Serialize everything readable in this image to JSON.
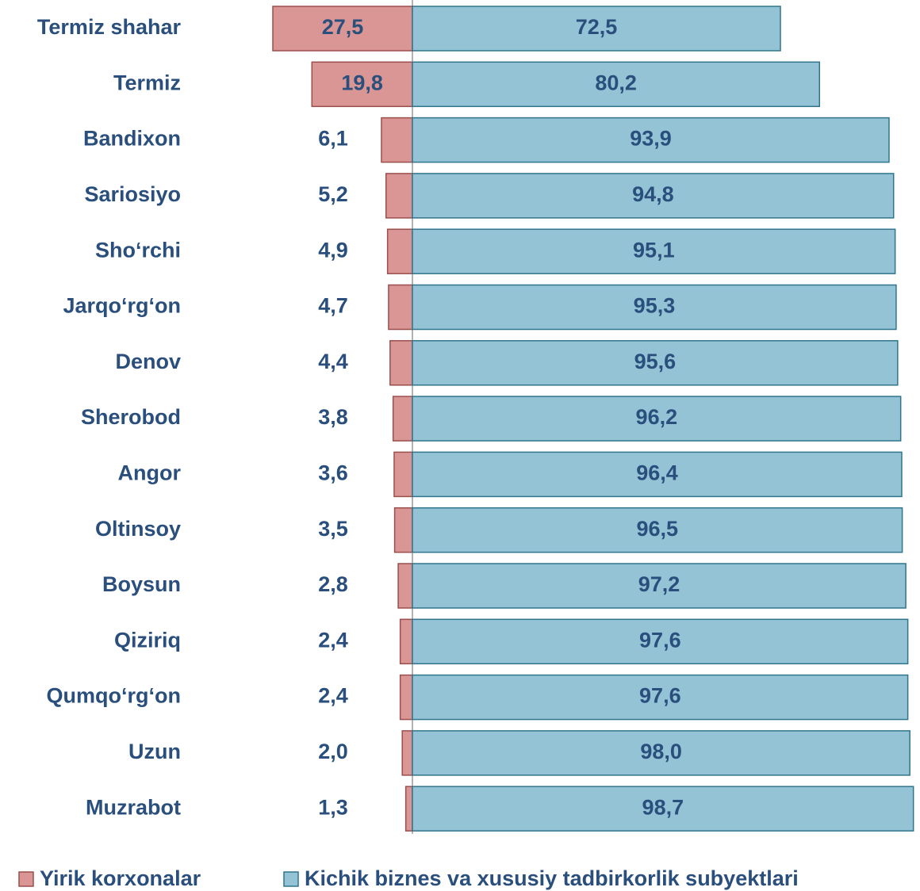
{
  "chart_data": {
    "type": "diverging_bar",
    "categories": [
      "Termiz shahar",
      "Termiz",
      "Bandixon",
      "Sariosiyo",
      "Sho‘rchi",
      "Jarqo‘rg‘on",
      "Denov",
      "Sherobod",
      "Angor",
      "Oltinsoy",
      "Boysun",
      "Qiziriq",
      "Qumqo‘rg‘on",
      "Uzun",
      "Muzrabot"
    ],
    "series": [
      {
        "name": "Yirik korxonalar",
        "color": "#d99694",
        "border": "#9b4f4d",
        "values": [
          27.5,
          19.8,
          6.1,
          5.2,
          4.9,
          4.7,
          4.4,
          3.8,
          3.6,
          3.5,
          2.8,
          2.4,
          2.4,
          2.0,
          1.3
        ],
        "value_labels": [
          "27,5",
          "19,8",
          "6,1",
          "5,2",
          "4,9",
          "4,7",
          "4,4",
          "3,8",
          "3,6",
          "3,5",
          "2,8",
          "2,4",
          "2,4",
          "2,0",
          "1,3"
        ]
      },
      {
        "name": "Kichik biznes va xususiy tadbirkorlik subyektlari",
        "color": "#93c3d5",
        "border": "#31758c",
        "values": [
          72.5,
          80.2,
          93.9,
          94.8,
          95.1,
          95.3,
          95.6,
          96.2,
          96.4,
          96.5,
          97.2,
          97.6,
          97.6,
          98.0,
          98.7
        ],
        "value_labels": [
          "72,5",
          "80,2",
          "93,9",
          "94,8",
          "95,1",
          "95,3",
          "95,6",
          "96,2",
          "96,4",
          "96,5",
          "97,2",
          "97,6",
          "97,6",
          "98,0",
          "98,7"
        ]
      }
    ]
  }
}
